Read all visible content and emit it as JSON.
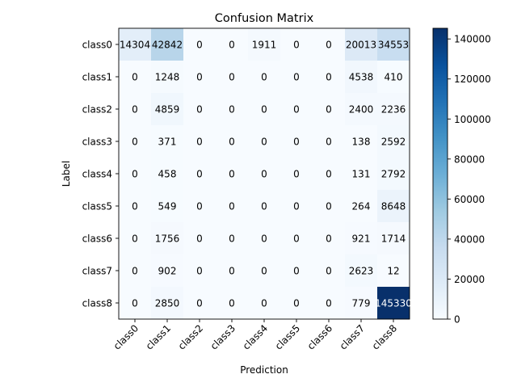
{
  "chart_data": {
    "type": "heatmap",
    "title": "Confusion Matrix",
    "xlabel": "Prediction",
    "ylabel": "Label",
    "x_categories": [
      "class0",
      "class1",
      "class2",
      "class3",
      "class4",
      "class5",
      "class6",
      "class7",
      "class8"
    ],
    "y_categories": [
      "class0",
      "class1",
      "class2",
      "class3",
      "class4",
      "class5",
      "class6",
      "class7",
      "class8"
    ],
    "values": [
      [
        14304,
        42842,
        0,
        0,
        1911,
        0,
        0,
        20013,
        34553
      ],
      [
        0,
        1248,
        0,
        0,
        0,
        0,
        0,
        4538,
        410
      ],
      [
        0,
        4859,
        0,
        0,
        0,
        0,
        0,
        2400,
        2236
      ],
      [
        0,
        371,
        0,
        0,
        0,
        0,
        0,
        138,
        2592
      ],
      [
        0,
        458,
        0,
        0,
        0,
        0,
        0,
        131,
        2792
      ],
      [
        0,
        549,
        0,
        0,
        0,
        0,
        0,
        264,
        8648
      ],
      [
        0,
        1756,
        0,
        0,
        0,
        0,
        0,
        921,
        1714
      ],
      [
        0,
        902,
        0,
        0,
        0,
        0,
        0,
        2623,
        12
      ],
      [
        0,
        2850,
        0,
        0,
        0,
        0,
        0,
        779,
        145330
      ]
    ],
    "colormap": "Blues",
    "color_range": [
      0,
      145330
    ],
    "colorbar_ticks": [
      0,
      20000,
      40000,
      60000,
      80000,
      100000,
      120000,
      140000
    ],
    "grid": false,
    "colors": {
      "low": "#f7fbff",
      "high": "#08306b"
    }
  }
}
